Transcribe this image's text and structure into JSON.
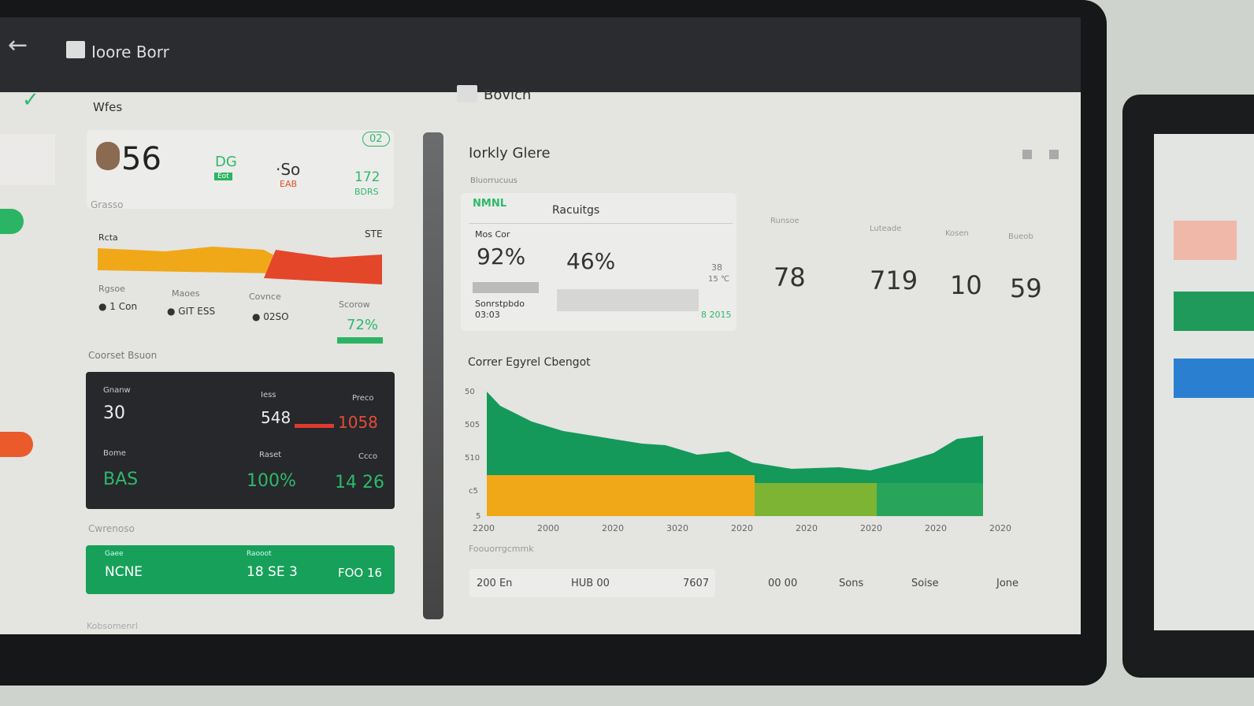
{
  "header": {
    "title": "Ioore Borr",
    "center": "Bovich"
  },
  "left": {
    "section": "Wfes",
    "kpi": {
      "value": "56",
      "tag": "DG",
      "tag2": "Eot",
      "mid": "·So",
      "mid_sub": "EAB",
      "right": "172",
      "right_sub": "BDRS",
      "badge": "02"
    },
    "trend": {
      "label": "Grasso",
      "left": "Rcta",
      "right": "STE"
    },
    "stats": [
      {
        "label": "Rgsoe",
        "value": "● 1 Con"
      },
      {
        "label": "Maoes",
        "value": "● GIT ESS"
      },
      {
        "label": "Covnce",
        "value": "● 02SO"
      },
      {
        "label": "Scorow",
        "value": "72%"
      }
    ],
    "section2": "Coorset Bsuon",
    "dark": [
      {
        "label": "Gnanw",
        "value": "30"
      },
      {
        "label": "Iess",
        "value": "548"
      },
      {
        "label": "Preco",
        "value": "1058"
      },
      {
        "label": "Bome",
        "value": "BAS"
      },
      {
        "label": "Raset",
        "value": "100%"
      },
      {
        "label": "Ccco",
        "value": "14 26"
      }
    ],
    "section3": "Cwrenoso",
    "green": [
      {
        "label": "Gaee",
        "value": "NCNE"
      },
      {
        "label": "Raooot",
        "value": "18 SE 3"
      },
      {
        "value": "FOO 16"
      }
    ],
    "footer": "Kobsomenrl"
  },
  "right": {
    "title": "Iorkly Glere",
    "subtitle": "Bluorrucuus",
    "tabs": [
      "NMNL",
      "Racuitgs"
    ],
    "card": {
      "label": "Mos Cor",
      "value1": "92%",
      "value2": "46%",
      "note": "Sonrstpbdo",
      "time": "03:03",
      "side": "38",
      "side2": "15 ℃",
      "link": "8 2015"
    },
    "metrics": [
      {
        "label": "Runsoe",
        "value": "78"
      },
      {
        "label": "Luteade",
        "value": "719"
      },
      {
        "label": "Kosen",
        "value": "10"
      },
      {
        "label": "Bueob",
        "value": "59"
      }
    ],
    "chart": {
      "title": "Correr Egyrel Cbengot",
      "yticks": [
        "50",
        "505",
        "510",
        "c5",
        "5"
      ],
      "xticks": [
        "2200",
        "2000",
        "2020",
        "3020",
        "2020",
        "2020",
        "2020",
        "2020",
        "2020"
      ]
    },
    "footer_label": "Foouorrgcmmk",
    "bottom": [
      "200 En",
      "HUB 00",
      "7607",
      "00 00",
      "Sons",
      "Soise",
      "Jone"
    ]
  }
}
